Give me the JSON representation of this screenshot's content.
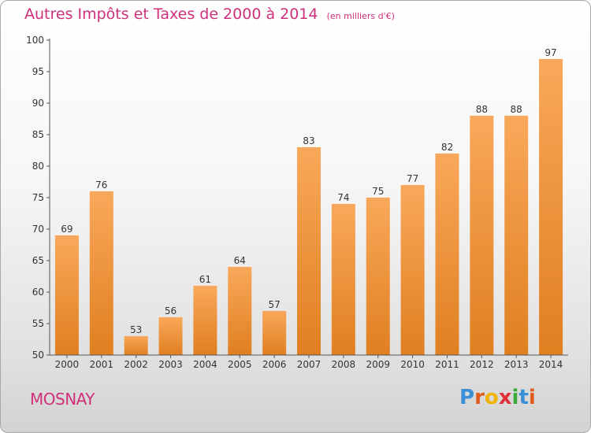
{
  "page": {
    "title": "Autres Impôts et Taxes de 2000 à 2014",
    "subtitle": "(en milliers d'€)",
    "commune": "MOSNAY",
    "brand": "Proxiti"
  },
  "colors": {
    "accent": "#d0307a",
    "bar_light": "#f9a85a",
    "bar_dark": "#e07f20",
    "axis": "#555555"
  },
  "chart_data": {
    "type": "bar",
    "title": "Autres Impôts et Taxes de 2000 à 2014",
    "subtitle": "(en milliers d'€)",
    "categories": [
      "2000",
      "2001",
      "2002",
      "2003",
      "2004",
      "2005",
      "2006",
      "2007",
      "2008",
      "2009",
      "2010",
      "2011",
      "2012",
      "2013",
      "2014"
    ],
    "values": [
      69,
      76,
      53,
      56,
      61,
      64,
      57,
      83,
      74,
      75,
      77,
      82,
      88,
      88,
      97
    ],
    "yticks": [
      50,
      55,
      60,
      65,
      70,
      75,
      80,
      85,
      90,
      95,
      100
    ],
    "ylim": [
      50,
      100
    ],
    "xlabel": "",
    "ylabel": "",
    "grid": false,
    "legend": "none"
  }
}
